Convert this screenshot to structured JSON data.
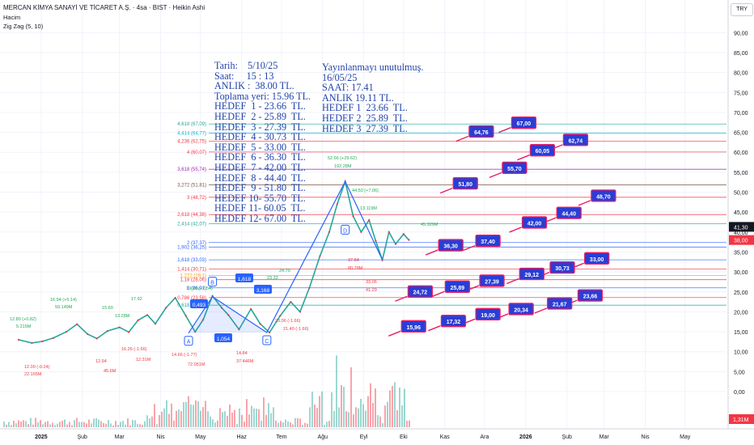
{
  "header": {
    "title": "MERCAN KİMYA SANAYİ VE TİCARET A.Ş. · 4sa · BIST · Heikin Ashi",
    "volume_label": "Hacim",
    "zigzag_label": "Zig Zag (5, 10)",
    "currency": "TRY"
  },
  "price_axis": {
    "ticks": [
      "90,00",
      "85,00",
      "80,00",
      "75,00",
      "70,00",
      "65,00",
      "60,00",
      "55,00",
      "50,00",
      "45,00",
      "40,00",
      "35,00",
      "30,00",
      "25,00",
      "20,00",
      "15,00",
      "10,00",
      "5,00",
      "0,00"
    ],
    "last_price": "41,30",
    "current_price": "38,00",
    "volume_value": "1,31M"
  },
  "time_axis": {
    "ticks": [
      "2025",
      "Şub",
      "Mar",
      "Nis",
      "May",
      "Haz",
      "Tem",
      "Ağu",
      "Eyl",
      "Eki",
      "Kas",
      "Ara",
      "2026",
      "Şub",
      "Mar",
      "Nis",
      "May"
    ]
  },
  "notes": {
    "left": [
      "Tarih:    5/10/25",
      "Saat:     15 : 13",
      "ANLIK :  38.00 TL.",
      "Toplama yeri: 15.96 TL.",
      "HEDEF  1 - 23.66  TL.",
      "HEDEF  2 - 25.89  TL.",
      "HEDEF  3 - 27.39  TL.",
      "HEDEF  4 - 30.73  TL.",
      "HEDEF  5 - 33.00  TL.",
      "HEDEF  6 - 36.30  TL.",
      "HEDEF  7 - 42.00  TL.",
      "HEDEF  8 - 44.40  TL.",
      "HEDEF  9 - 51.80  TL.",
      "HEDEF 10- 55.70  TL.",
      "HEDEF 11- 60.05  TL.",
      "HEDEF 12- 67.00  TL."
    ],
    "right": [
      "Yayınlanmayı unutulmuş.",
      "16/05/25",
      "SAAT: 17.41",
      "ANLIK 19.11 TL.",
      "HEDEF 1  23.66  TL.",
      "HEDEF 2  25.89  TL.",
      "HEDEF 3  27.39  TL."
    ]
  },
  "fib_labels": [
    "4,618 (67,09)",
    "4,414 (64,77)",
    "4,236 (62,75)",
    "4 (60,07)",
    "3,618 (55,74)",
    "3,272 (51,81)",
    "3 (48,72)",
    "2,618 (44,38)",
    "2,414 (42,07)",
    "2 (37,37)",
    "1,902 (36,25)",
    "1,618 (33,03)",
    "1,414 (30,71)",
    "1,272 (29,1)",
    "1,18 (28,06)",
    "1 (26,01)",
    "0,786 (23,58)",
    "0,618 (21,67)"
  ],
  "wave_labels": [
    "A",
    "B",
    "C",
    "D",
    "1,618",
    "3,168",
    "0,493",
    "1,054"
  ],
  "chart_data": {
    "type": "candlestick",
    "title": "MERCAN KİMYA SANAYİ VE TİCARET A.Ş. · 4sa · BIST · Heikin Ashi",
    "y_unit": "TRY",
    "ylim": [
      -6,
      95
    ],
    "price_series": [
      {
        "date": "2024-12-15",
        "price": 13.0
      },
      {
        "date": "2024-12-25",
        "price": 12.2
      },
      {
        "date": "2025-01-02",
        "price": 12.6
      },
      {
        "date": "2025-01-10",
        "price": 13.4
      },
      {
        "date": "2025-01-20",
        "price": 15.0
      },
      {
        "date": "2025-01-28",
        "price": 16.9
      },
      {
        "date": "2025-02-05",
        "price": 14.4
      },
      {
        "date": "2025-02-12",
        "price": 13.3
      },
      {
        "date": "2025-02-20",
        "price": 15.2
      },
      {
        "date": "2025-03-01",
        "price": 16.1
      },
      {
        "date": "2025-03-08",
        "price": 14.9
      },
      {
        "date": "2025-03-15",
        "price": 17.9
      },
      {
        "date": "2025-03-22",
        "price": 19.2
      },
      {
        "date": "2025-03-28",
        "price": 17.0
      },
      {
        "date": "2025-04-05",
        "price": 21.0
      },
      {
        "date": "2025-04-12",
        "price": 23.5
      },
      {
        "date": "2025-04-20",
        "price": 19.0
      },
      {
        "date": "2025-04-27",
        "price": 15.0
      },
      {
        "date": "2025-05-03",
        "price": 18.0
      },
      {
        "date": "2025-05-10",
        "price": 24.0
      },
      {
        "date": "2025-05-17",
        "price": 21.0
      },
      {
        "date": "2025-05-22",
        "price": 19.2
      },
      {
        "date": "2025-05-30",
        "price": 15.6
      },
      {
        "date": "2025-06-08",
        "price": 20.7
      },
      {
        "date": "2025-06-15",
        "price": 17.0
      },
      {
        "date": "2025-06-22",
        "price": 14.8
      },
      {
        "date": "2025-06-30",
        "price": 19.0
      },
      {
        "date": "2025-07-08",
        "price": 22.5
      },
      {
        "date": "2025-07-15",
        "price": 20.0
      },
      {
        "date": "2025-07-22",
        "price": 26.0
      },
      {
        "date": "2025-07-30",
        "price": 34.0
      },
      {
        "date": "2025-08-06",
        "price": 40.0
      },
      {
        "date": "2025-08-12",
        "price": 47.0
      },
      {
        "date": "2025-08-18",
        "price": 52.7
      },
      {
        "date": "2025-08-24",
        "price": 44.0
      },
      {
        "date": "2025-08-30",
        "price": 40.0
      },
      {
        "date": "2025-09-05",
        "price": 43.0
      },
      {
        "date": "2025-09-10",
        "price": 37.8
      },
      {
        "date": "2025-09-15",
        "price": 33.0
      },
      {
        "date": "2025-09-20",
        "price": 40.0
      },
      {
        "date": "2025-09-25",
        "price": 37.0
      },
      {
        "date": "2025-10-01",
        "price": 39.5
      },
      {
        "date": "2025-10-05",
        "price": 38.0
      }
    ],
    "zigzag": [
      {
        "date": "2025-04-22",
        "price": 14.66,
        "label": "A"
      },
      {
        "date": "2025-05-10",
        "price": 23.8,
        "label": "B"
      },
      {
        "date": "2025-06-20",
        "price": 14.8,
        "label": "C"
      },
      {
        "date": "2025-08-18",
        "price": 52.66,
        "label": "D"
      },
      {
        "date": "2025-09-15",
        "price": 33.06
      }
    ],
    "fib_levels": [
      {
        "ratio": "4,618",
        "price": 67.09,
        "color": "#26a69a"
      },
      {
        "ratio": "4,414",
        "price": 64.77,
        "color": "#00bcd4"
      },
      {
        "ratio": "4,236",
        "price": 62.75,
        "color": "#f23645"
      },
      {
        "ratio": "4",
        "price": 60.07,
        "color": "#f23645"
      },
      {
        "ratio": "3,618",
        "price": 55.74,
        "color": "#9c27b0"
      },
      {
        "ratio": "3,272",
        "price": 51.81,
        "color": "#795548"
      },
      {
        "ratio": "3",
        "price": 48.72,
        "color": "#f23645"
      },
      {
        "ratio": "2,618",
        "price": 44.38,
        "color": "#f23645"
      },
      {
        "ratio": "2,414",
        "price": 42.07,
        "color": "#26a69a"
      },
      {
        "ratio": "2",
        "price": 37.37,
        "color": "#2962ff"
      },
      {
        "ratio": "1,902",
        "price": 36.25,
        "color": "#2962ff"
      },
      {
        "ratio": "1,618",
        "price": 33.03,
        "color": "#2962ff"
      },
      {
        "ratio": "1,414",
        "price": 30.71,
        "color": "#f23645"
      },
      {
        "ratio": "1,272",
        "price": 29.1,
        "color": "#ff9800"
      },
      {
        "ratio": "1,18",
        "price": 28.06,
        "color": "#f23645"
      },
      {
        "ratio": "1",
        "price": 26.01,
        "color": "#2962ff"
      },
      {
        "ratio": "0,786",
        "price": 23.58,
        "color": "#f23645"
      },
      {
        "ratio": "0,618",
        "price": 21.67,
        "color": "#26a69a"
      }
    ],
    "target_callouts": [
      {
        "value": "67,00",
        "date": "2025-12-22",
        "price": 67
      },
      {
        "value": "64,76",
        "date": "2025-11-20",
        "price": 64.8
      },
      {
        "value": "62,74",
        "date": "2026-01-30",
        "price": 62.7
      },
      {
        "value": "60,05",
        "date": "2026-01-05",
        "price": 60.1
      },
      {
        "value": "55,70",
        "date": "2025-12-15",
        "price": 55.7
      },
      {
        "value": "51,80",
        "date": "2025-11-08",
        "price": 51.8
      },
      {
        "value": "48,70",
        "date": "2026-02-20",
        "price": 48.7
      },
      {
        "value": "44,40",
        "date": "2026-01-25",
        "price": 44.4
      },
      {
        "value": "42,00",
        "date": "2025-12-30",
        "price": 42.0
      },
      {
        "value": "37,40",
        "date": "2025-11-25",
        "price": 37.4
      },
      {
        "value": "36,30",
        "date": "2025-10-28",
        "price": 36.3
      },
      {
        "value": "33,00",
        "date": "2026-02-15",
        "price": 33.0
      },
      {
        "value": "30,73",
        "date": "2026-01-20",
        "price": 30.7
      },
      {
        "value": "29,12",
        "date": "2025-12-28",
        "price": 29.1
      },
      {
        "value": "27,39",
        "date": "2025-11-28",
        "price": 27.4
      },
      {
        "value": "25,89",
        "date": "2025-11-02",
        "price": 25.9
      },
      {
        "value": "24,72",
        "date": "2025-10-05",
        "price": 24.7
      },
      {
        "value": "23,66",
        "date": "2026-02-10",
        "price": 23.7
      },
      {
        "value": "21,67",
        "date": "2026-01-18",
        "price": 21.7
      },
      {
        "value": "20,34",
        "date": "2025-12-20",
        "price": 20.3
      },
      {
        "value": "19,00",
        "date": "2025-11-25",
        "price": 19.0
      },
      {
        "value": "17,32",
        "date": "2025-10-30",
        "price": 17.3
      },
      {
        "value": "15,96",
        "date": "2025-09-30",
        "price": 15.96
      }
    ],
    "annotations_red": [
      "12.00 (-0.24)",
      "22.165M",
      "12.94",
      "45.6M",
      "16.26 (-1.66)",
      "12.31M",
      "14.66 (-1.77)",
      "72.051M",
      "14.84",
      "37.446M",
      "23.06 (-1.66)",
      "21.40 (-1.66)",
      "37.84",
      "80.78M",
      "33.06",
      "41.29"
    ],
    "annotations_green": [
      "12.80 (+0.82)",
      "5.215M",
      "16.94 (+5.14)",
      "59.149M",
      "15.60",
      "13.28M",
      "17.92",
      "19.80 (+2.54)",
      "23.32",
      "24.70",
      "52.66 (+29.62)",
      "192.28M",
      "44.50 (+7.06)",
      "13.119M",
      "45.329M"
    ]
  }
}
